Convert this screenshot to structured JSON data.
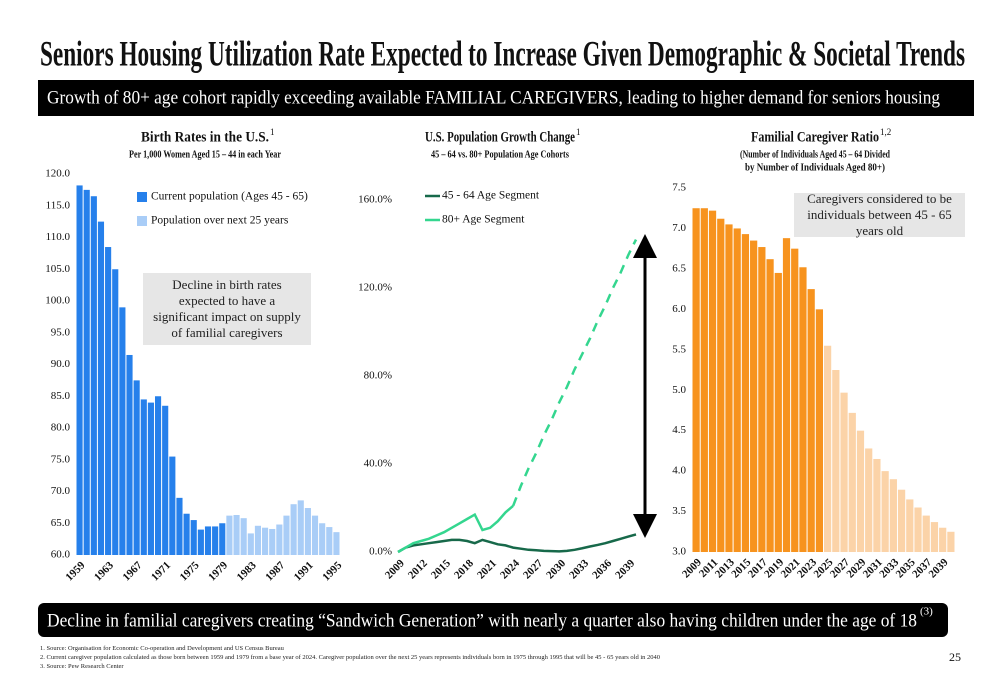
{
  "header": {
    "title": "Seniors Housing Utilization Rate Expected to Increase Given Demographic & Societal Trends",
    "banner": "Growth of 80+ age cohort rapidly exceeding available FAMILIAL CAREGIVERS, leading to higher demand for seniors housing"
  },
  "chart_data": [
    {
      "type": "bar",
      "title": "Birth Rates in the U.S.",
      "title_sup": "1",
      "subtitle": "Per 1,000 Women Aged 15 – 44 in each Year",
      "annotation": "Decline in birth rates expected to have a significant impact on supply of familial caregivers",
      "categories": [
        "1959",
        null,
        null,
        null,
        "1963",
        null,
        null,
        null,
        "1967",
        null,
        null,
        null,
        "1971",
        null,
        null,
        null,
        "1975",
        null,
        null,
        null,
        "1979",
        null,
        null,
        null,
        "1983",
        null,
        null,
        null,
        "1987",
        null,
        null,
        null,
        "1991",
        null,
        null,
        null,
        "1995"
      ],
      "series": [
        {
          "name": "Current population (Ages 45 - 65)",
          "color": "#2680eb",
          "values": [
            118.2,
            117.5,
            116.5,
            112.5,
            108.5,
            105.0,
            99.0,
            91.5,
            87.5,
            84.5,
            84.0,
            85.0,
            83.5,
            75.5,
            69.0,
            66.5,
            65.5,
            64.0,
            64.5,
            64.5,
            65.0,
            null,
            null,
            null,
            null,
            null,
            null,
            null,
            null,
            null,
            null,
            null,
            null,
            null,
            null,
            null,
            null
          ]
        },
        {
          "name": "Population over next 25 years",
          "color": "#a9cdf7",
          "values": [
            null,
            null,
            null,
            null,
            null,
            null,
            null,
            null,
            null,
            null,
            null,
            null,
            null,
            null,
            null,
            null,
            null,
            null,
            null,
            null,
            null,
            66.2,
            66.3,
            65.8,
            63.4,
            64.6,
            64.3,
            64.1,
            64.8,
            66.2,
            68.0,
            68.6,
            67.4,
            66.2,
            65.0,
            64.4,
            63.6
          ]
        }
      ],
      "ylim": [
        60,
        120
      ],
      "yticks": [
        {
          "value": 60,
          "label": "60.0"
        },
        {
          "value": 65,
          "label": "65.0"
        },
        {
          "value": 70,
          "label": "70.0"
        },
        {
          "value": 75,
          "label": "75.0"
        },
        {
          "value": 80,
          "label": "80.0"
        },
        {
          "value": 85,
          "label": "85.0"
        },
        {
          "value": 90,
          "label": "90.0"
        },
        {
          "value": 95,
          "label": "95.0"
        },
        {
          "value": 100,
          "label": "100.0"
        },
        {
          "value": 105,
          "label": "105.0"
        },
        {
          "value": 110,
          "label": "110.0"
        },
        {
          "value": 115,
          "label": "115.0"
        },
        {
          "value": 120,
          "label": "120.0"
        }
      ],
      "legend": "upper left"
    },
    {
      "type": "line",
      "title": "U.S. Population Growth Change",
      "title_sup": "1",
      "subtitle": "45 – 64 vs. 80+ Population Age Cohorts",
      "x": [
        2009,
        2010,
        2011,
        2012,
        2013,
        2014,
        2015,
        2016,
        2017,
        2018,
        2019,
        2020,
        2021,
        2022,
        2023,
        2024,
        2025,
        2026,
        2027,
        2028,
        2029,
        2030,
        2031,
        2032,
        2033,
        2034,
        2035,
        2036,
        2037,
        2038,
        2039,
        2040
      ],
      "series": [
        {
          "name": "45 - 64 Age Segment",
          "color": "#17694a",
          "values": [
            0,
            2,
            3,
            3.5,
            4,
            4.5,
            5,
            5.5,
            5.5,
            5,
            4,
            5.5,
            4.5,
            3.5,
            3,
            2,
            1.5,
            1,
            0.8,
            0.5,
            0.4,
            0.3,
            0.5,
            1,
            1.7,
            2.5,
            3.2,
            4,
            5,
            6,
            7,
            8
          ]
        },
        {
          "name": "80+ Age Segment",
          "color": "#34d68f",
          "dashed_after": 2024,
          "values": [
            0,
            2,
            4,
            5,
            6,
            7.5,
            9,
            11,
            13,
            15,
            17,
            10,
            11,
            14,
            18,
            21,
            30,
            38,
            45,
            53,
            60,
            68,
            75,
            83,
            90,
            97,
            105,
            112,
            120,
            127,
            135,
            142
          ]
        }
      ],
      "xlim": [
        2009,
        2040
      ],
      "xticks": [
        2009,
        2012,
        2015,
        2018,
        2021,
        2024,
        2027,
        2030,
        2033,
        2036,
        2039
      ],
      "ylim": [
        0,
        160
      ],
      "yticks": [
        {
          "value": 0,
          "label": "0.0%"
        },
        {
          "value": 40,
          "label": "40.0%"
        },
        {
          "value": 80,
          "label": "80.0%"
        },
        {
          "value": 120,
          "label": "120.0%"
        },
        {
          "value": 160,
          "label": "160.0%"
        }
      ],
      "legend": "upper left"
    },
    {
      "type": "bar",
      "title": "Familial Caregiver Ratio",
      "title_sup": "1,2",
      "subtitle": [
        "(Number of Individuals Aged 45 – 64 Divided",
        "by Number of Individuals Aged 80+)"
      ],
      "annotation": "Caregivers considered to be individuals between 45 - 65 years old",
      "categories": [
        "2009",
        null,
        "2011",
        null,
        "2013",
        null,
        "2015",
        null,
        "2017",
        null,
        "2019",
        null,
        "2021",
        null,
        "2023",
        null,
        "2025",
        null,
        "2027",
        null,
        "2029",
        null,
        "2031",
        null,
        "2033",
        null,
        "2035",
        null,
        "2037",
        null,
        "2039",
        null
      ],
      "series": [
        {
          "color": "#f7931e",
          "values": [
            7.25,
            7.25,
            7.22,
            7.12,
            7.05,
            7.0,
            6.93,
            6.85,
            6.77,
            6.62,
            6.45,
            6.88,
            6.75,
            6.52,
            6.25,
            6.0,
            null,
            null,
            null,
            null,
            null,
            null,
            null,
            null,
            null,
            null,
            null,
            null,
            null,
            null,
            null,
            null
          ]
        },
        {
          "color": "#fbd3a8",
          "values": [
            null,
            null,
            null,
            null,
            null,
            null,
            null,
            null,
            null,
            null,
            null,
            null,
            null,
            null,
            null,
            null,
            5.55,
            5.25,
            4.97,
            4.72,
            4.5,
            4.28,
            4.15,
            4.0,
            3.9,
            3.77,
            3.65,
            3.55,
            3.45,
            3.37,
            3.3,
            3.25
          ]
        }
      ],
      "ylim": [
        3,
        7.5
      ],
      "yticks": [
        {
          "value": 3,
          "label": "3.0"
        },
        {
          "value": 3.5,
          "label": "3.5"
        },
        {
          "value": 4,
          "label": "4.0"
        },
        {
          "value": 4.5,
          "label": "4.5"
        },
        {
          "value": 5,
          "label": "5.0"
        },
        {
          "value": 5.5,
          "label": "5.5"
        },
        {
          "value": 6,
          "label": "6.0"
        },
        {
          "value": 6.5,
          "label": "6.5"
        },
        {
          "value": 7,
          "label": "7.0"
        },
        {
          "value": 7.5,
          "label": "7.5"
        }
      ]
    }
  ],
  "footer": {
    "banner": "Decline in familial caregivers creating “Sandwich Generation” with nearly a quarter also having children under the age of 18",
    "banner_sup": "(3)",
    "footnotes": [
      "1. Source: Organisation for Economic Co-operation and Development and US Census Bureau",
      "2. Current caregiver population calculated as those born between 1959 and 1979 from a base year of 2024. Caregiver population over the next 25 years represents individuals born in 1975 through 1995 that will be 45 - 65 years old in 2040",
      "3. Source: Pew Research Center"
    ],
    "page": "25"
  }
}
